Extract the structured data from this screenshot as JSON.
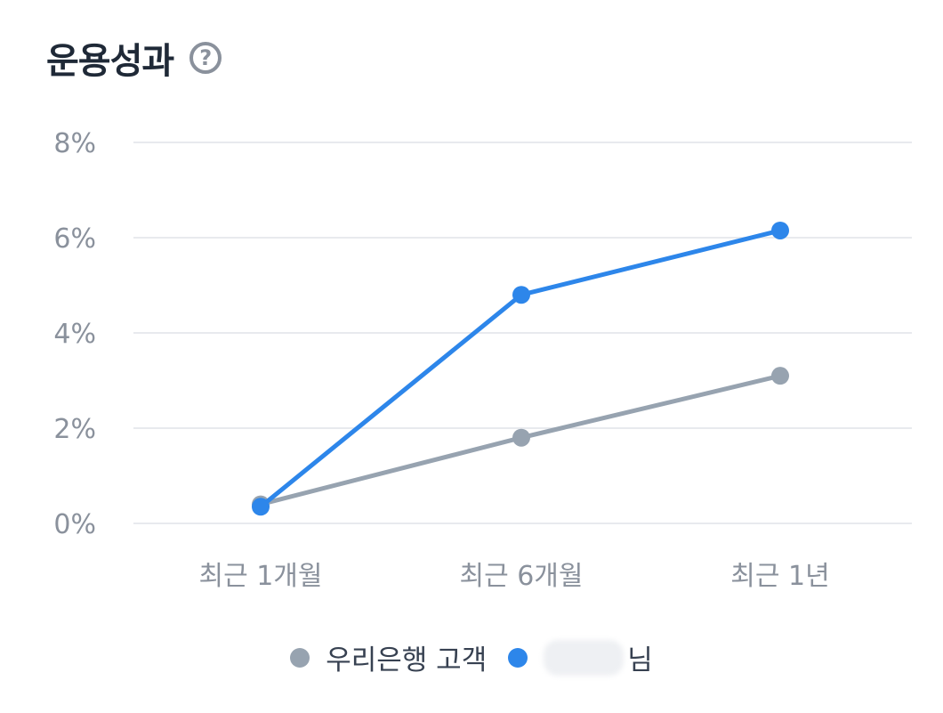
{
  "header": {
    "title": "운용성과",
    "help_icon": "question-circle-icon",
    "help_glyph": "?"
  },
  "chart_data": {
    "type": "line",
    "categories": [
      "최근 1개월",
      "최근 6개월",
      "최근 1년"
    ],
    "ylim": [
      0,
      8
    ],
    "yticks": [
      0,
      2,
      4,
      6,
      8
    ],
    "ytick_labels": [
      "0%",
      "2%",
      "4%",
      "6%",
      "8%"
    ],
    "grid": true,
    "legend_position": "bottom",
    "series": [
      {
        "name": "우리은행 고객",
        "color": "#97a3b0",
        "values": [
          0.4,
          1.8,
          3.1
        ]
      },
      {
        "name": "님",
        "color": "#2d86ea",
        "values": [
          0.35,
          4.8,
          6.15
        ]
      }
    ]
  },
  "legend": {
    "customer_label": "우리은행 고객",
    "user_suffix": "님"
  },
  "colors": {
    "gridline": "#e8eaee",
    "axis_text": "#8a919c"
  }
}
